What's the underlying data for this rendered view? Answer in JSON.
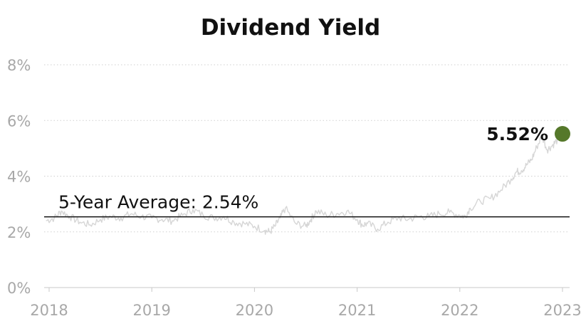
{
  "chart_data": {
    "type": "line",
    "title": "Dividend Yield",
    "xlabel": "",
    "ylabel": "",
    "x_ticks": [
      "2018",
      "2019",
      "2020",
      "2021",
      "2022",
      "2023"
    ],
    "y_ticks": [
      "0%",
      "2%",
      "4%",
      "6%",
      "8%"
    ],
    "ylim": [
      0,
      8
    ],
    "xlim": [
      2018.0,
      2023.0
    ],
    "grid": true,
    "series": [
      {
        "name": "",
        "color": "#d6d6d6",
        "x": [
          2017.97,
          2018.05,
          2018.12,
          2018.2,
          2018.3,
          2018.4,
          2018.5,
          2018.6,
          2018.7,
          2018.8,
          2018.9,
          2019.0,
          2019.1,
          2019.2,
          2019.3,
          2019.4,
          2019.5,
          2019.6,
          2019.7,
          2019.8,
          2019.9,
          2020.0,
          2020.1,
          2020.15,
          2020.2,
          2020.25,
          2020.3,
          2020.4,
          2020.5,
          2020.55,
          2020.6,
          2020.7,
          2020.8,
          2020.9,
          2021.0,
          2021.05,
          2021.1,
          2021.2,
          2021.3,
          2021.4,
          2021.5,
          2021.6,
          2021.7,
          2021.8,
          2021.9,
          2022.0,
          2022.05,
          2022.1,
          2022.2,
          2022.3,
          2022.4,
          2022.5,
          2022.55,
          2022.6,
          2022.65,
          2022.7,
          2022.75,
          2022.8,
          2022.85,
          2022.9,
          2022.95,
          2023.0
        ],
        "y": [
          2.4,
          2.5,
          2.75,
          2.55,
          2.35,
          2.25,
          2.45,
          2.55,
          2.5,
          2.65,
          2.55,
          2.5,
          2.45,
          2.4,
          2.6,
          2.8,
          2.6,
          2.5,
          2.55,
          2.35,
          2.3,
          2.2,
          2.05,
          2.0,
          2.2,
          2.5,
          2.85,
          2.3,
          2.2,
          2.45,
          2.75,
          2.6,
          2.65,
          2.75,
          2.45,
          2.25,
          2.3,
          2.1,
          2.35,
          2.5,
          2.45,
          2.55,
          2.55,
          2.65,
          2.7,
          2.6,
          2.55,
          2.85,
          3.1,
          3.2,
          3.5,
          3.9,
          4.15,
          4.2,
          4.4,
          4.6,
          5.05,
          5.45,
          4.95,
          5.1,
          5.3,
          5.52
        ]
      }
    ],
    "reference_line": {
      "value": 2.54,
      "label": "5-Year Average: 2.54%",
      "color": "#111111"
    },
    "current": {
      "x": 2023.0,
      "value": 5.52,
      "label": "5.52%",
      "color": "#55782a"
    }
  }
}
